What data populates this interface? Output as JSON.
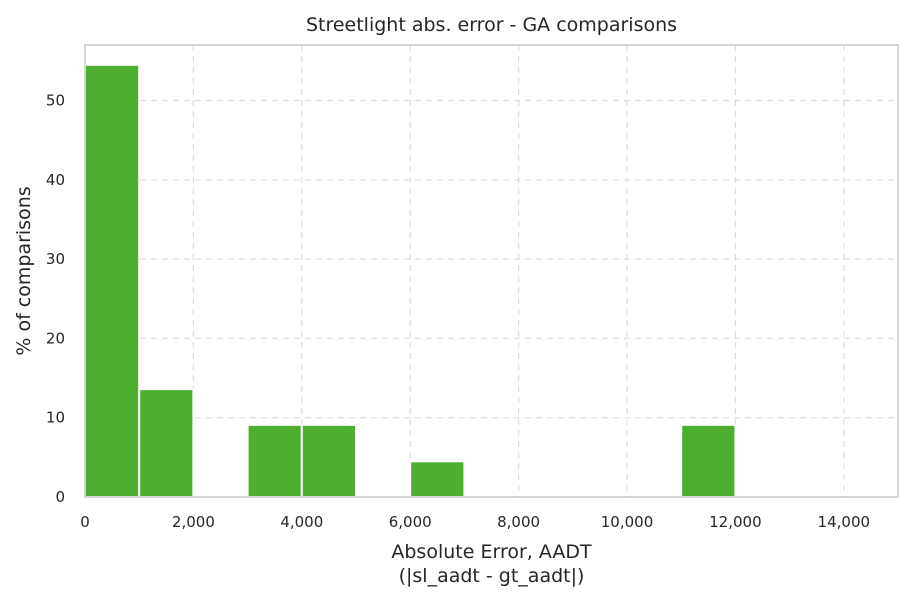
{
  "chart_data": {
    "type": "bar",
    "title": "Streetlight abs. error - GA comparisons",
    "xlabel": "Absolute Error, AADT",
    "xlabel_line2": "(|sl_aadt - gt_aadt|)",
    "ylabel": "% of comparisons",
    "xlim": [
      0,
      15000
    ],
    "ylim": [
      0,
      57
    ],
    "x_ticks": [
      0,
      2000,
      4000,
      6000,
      8000,
      10000,
      12000,
      14000
    ],
    "x_tick_labels": [
      "0",
      "2,000",
      "4,000",
      "6,000",
      "8,000",
      "10,000",
      "12,000",
      "14,000"
    ],
    "y_ticks": [
      0,
      10,
      20,
      30,
      40,
      50
    ],
    "y_tick_labels": [
      "0",
      "10",
      "20",
      "30",
      "40",
      "50"
    ],
    "grid": true,
    "bar_color": "#4daf2f",
    "bins": [
      {
        "start": 0,
        "end": 1000,
        "value": 54.5
      },
      {
        "start": 1000,
        "end": 2000,
        "value": 13.6
      },
      {
        "start": 3000,
        "end": 4000,
        "value": 9.1
      },
      {
        "start": 4000,
        "end": 5000,
        "value": 9.1
      },
      {
        "start": 6000,
        "end": 7000,
        "value": 4.5
      },
      {
        "start": 11000,
        "end": 12000,
        "value": 9.1
      }
    ]
  }
}
